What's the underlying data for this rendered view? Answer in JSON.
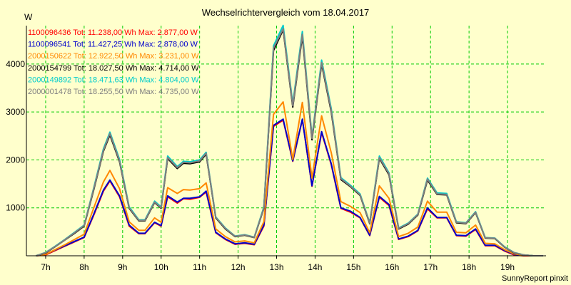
{
  "chart_data": {
    "type": "line",
    "title": "Wechselrichtervergleich vom 18.04.2017",
    "ylabel": "W",
    "xlabel": "",
    "footer": "SunnyReport pinxit",
    "grid": true,
    "legend_position": "top-left",
    "ylim": [
      0,
      4800
    ],
    "xlim": [
      6.5,
      20.0
    ],
    "y_ticks": [
      1000,
      2000,
      3000,
      4000
    ],
    "x_ticks": [
      7,
      8,
      9,
      10,
      11,
      12,
      13,
      14,
      15,
      16,
      17,
      18,
      19
    ],
    "x_tick_labels": [
      "7h",
      "8h",
      "9h",
      "10h",
      "11h",
      "12h",
      "13h",
      "14h",
      "15h",
      "16h",
      "17h",
      "18h",
      "19h"
    ],
    "x": [
      6.75,
      7.0,
      7.25,
      7.5,
      7.75,
      8.0,
      8.25,
      8.5,
      8.67,
      8.92,
      9.17,
      9.42,
      9.58,
      9.83,
      10.0,
      10.17,
      10.42,
      10.58,
      10.75,
      11.0,
      11.17,
      11.42,
      11.67,
      11.92,
      12.17,
      12.42,
      12.67,
      12.92,
      13.17,
      13.42,
      13.67,
      13.92,
      14.17,
      14.42,
      14.67,
      14.92,
      15.17,
      15.42,
      15.67,
      15.92,
      16.17,
      16.42,
      16.67,
      16.92,
      17.17,
      17.42,
      17.67,
      17.92,
      18.17,
      18.42,
      18.67,
      18.92,
      19.17,
      19.42,
      19.67,
      19.92
    ],
    "series": [
      {
        "name": "1100096436 Tot: 11.238,00 Wh Max: 2.877,00 W",
        "color": "#ff0000",
        "values": [
          0,
          20,
          110,
          200,
          290,
          380,
          850,
          1350,
          1560,
          1230,
          620,
          460,
          460,
          690,
          620,
          1230,
          1100,
          1190,
          1180,
          1220,
          1330,
          480,
          340,
          240,
          260,
          230,
          620,
          2700,
          2830,
          1970,
          2840,
          1450,
          2570,
          1900,
          990,
          910,
          790,
          420,
          1220,
          1050,
          340,
          400,
          520,
          980,
          790,
          790,
          420,
          410,
          550,
          210,
          210,
          100,
          20,
          0,
          0,
          0
        ]
      },
      {
        "name": "1100096541 Tot: 11.427,25 Wh Max: 2.878,00 W",
        "color": "#0000cc",
        "values": [
          0,
          30,
          120,
          210,
          300,
          390,
          870,
          1370,
          1580,
          1250,
          640,
          470,
          470,
          700,
          630,
          1250,
          1120,
          1200,
          1200,
          1230,
          1350,
          490,
          350,
          250,
          270,
          240,
          640,
          2720,
          2850,
          1980,
          2850,
          1460,
          2590,
          1920,
          1000,
          930,
          800,
          430,
          1240,
          1070,
          350,
          410,
          530,
          1000,
          800,
          800,
          430,
          420,
          560,
          220,
          220,
          110,
          30,
          10,
          0,
          0
        ]
      },
      {
        "name": "2000150622 Tot: 12.922,50 Wh Max: 3.231,00 W",
        "color": "#ff8800",
        "values": [
          0,
          30,
          130,
          230,
          340,
          450,
          1000,
          1540,
          1780,
          1400,
          710,
          530,
          530,
          790,
          700,
          1420,
          1300,
          1380,
          1370,
          1400,
          1520,
          560,
          400,
          290,
          310,
          270,
          710,
          2950,
          3210,
          2010,
          3200,
          1620,
          2920,
          2150,
          1130,
          1030,
          900,
          480,
          1460,
          1200,
          400,
          470,
          600,
          1140,
          910,
          910,
          490,
          480,
          640,
          260,
          250,
          130,
          40,
          10,
          0,
          0
        ]
      },
      {
        "name": "2000154799 Tot: 18.027,50 Wh Max: 4.714,00 W",
        "color": "#000000",
        "values": [
          0,
          60,
          190,
          330,
          470,
          620,
          1380,
          2180,
          2520,
          1960,
          990,
          730,
          730,
          1110,
          990,
          2030,
          1820,
          1930,
          1920,
          1960,
          2120,
          790,
          560,
          400,
          430,
          380,
          990,
          4280,
          4714,
          3100,
          4580,
          2420,
          4000,
          3000,
          1590,
          1440,
          1260,
          670,
          2030,
          1690,
          560,
          660,
          850,
          1580,
          1280,
          1270,
          690,
          670,
          900,
          370,
          360,
          180,
          60,
          20,
          0,
          0
        ]
      },
      {
        "name": "2000149892 Tot: 18.471,63 Wh Max: 4.804,00 W",
        "color": "#00cccc",
        "values": [
          0,
          70,
          200,
          340,
          490,
          640,
          1420,
          2230,
          2580,
          2010,
          1020,
          750,
          750,
          1140,
          1020,
          2080,
          1860,
          1970,
          1960,
          2000,
          2160,
          810,
          580,
          410,
          440,
          390,
          1020,
          4380,
          4804,
          3170,
          4680,
          2480,
          4080,
          3070,
          1630,
          1470,
          1290,
          690,
          2080,
          1730,
          580,
          680,
          870,
          1620,
          1310,
          1300,
          710,
          690,
          920,
          380,
          370,
          190,
          70,
          20,
          0,
          0
        ]
      },
      {
        "name": "2000001478 Tot: 18.255,50 Wh Max: 4.735,00 W",
        "color": "#808080",
        "values": [
          0,
          65,
          195,
          335,
          480,
          630,
          1400,
          2200,
          2550,
          1980,
          1000,
          740,
          740,
          1120,
          1000,
          2050,
          1840,
          1950,
          1940,
          1980,
          2140,
          800,
          570,
          405,
          435,
          385,
          1000,
          4330,
          4735,
          3130,
          4620,
          2450,
          4030,
          3030,
          1610,
          1450,
          1270,
          680,
          2050,
          1710,
          570,
          670,
          860,
          1600,
          1290,
          1280,
          700,
          680,
          910,
          375,
          365,
          185,
          65,
          20,
          0,
          0
        ]
      }
    ]
  }
}
